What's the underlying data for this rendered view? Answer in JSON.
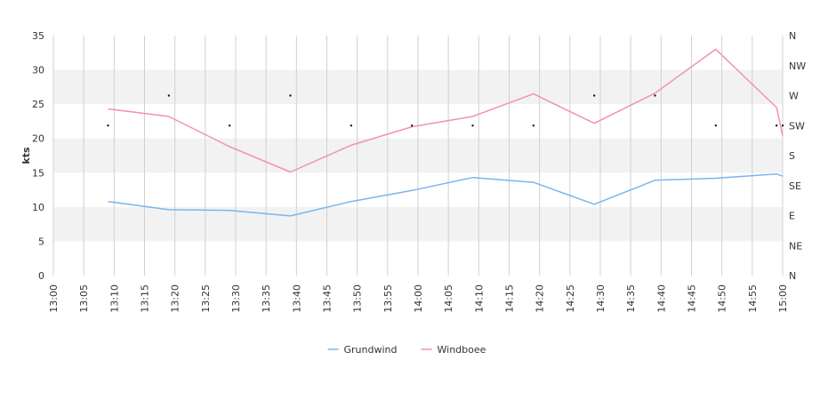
{
  "chart_data": {
    "type": "line",
    "ylabel": "kts",
    "ylim": [
      0,
      35
    ],
    "y_ticks": [
      "0",
      "5",
      "10",
      "15",
      "20",
      "25",
      "30",
      "35"
    ],
    "y2_ticks": [
      "N",
      "NE",
      "E",
      "SE",
      "S",
      "SW",
      "W",
      "NW",
      "N"
    ],
    "x_ticks": [
      "13:00",
      "13:05",
      "13:10",
      "13:15",
      "13:20",
      "13:25",
      "13:30",
      "13:35",
      "13:40",
      "13:45",
      "13:50",
      "13:55",
      "14:00",
      "14:05",
      "14:10",
      "14:15",
      "14:20",
      "14:25",
      "14:30",
      "14:35",
      "14:40",
      "14:45",
      "14:50",
      "14:55",
      "15:00"
    ],
    "grid": true,
    "legend_position": "bottom",
    "series": [
      {
        "name": "Grundwind",
        "color": "#7cb5ec",
        "points": [
          [
            "13:09",
            10.8
          ],
          [
            "13:19",
            9.6
          ],
          [
            "13:29",
            9.5
          ],
          [
            "13:39",
            8.7
          ],
          [
            "13:49",
            10.8
          ],
          [
            "13:59",
            12.4
          ],
          [
            "14:09",
            14.3
          ],
          [
            "14:19",
            13.6
          ],
          [
            "14:29",
            10.4
          ],
          [
            "14:39",
            13.9
          ],
          [
            "14:49",
            14.2
          ],
          [
            "14:59",
            14.8
          ],
          [
            "15:00",
            14.5
          ]
        ]
      },
      {
        "name": "Windboee",
        "color": "#f28fc0",
        "points": [
          [
            "13:09",
            24.3
          ],
          [
            "13:19",
            23.2
          ],
          [
            "13:29",
            18.8
          ],
          [
            "13:39",
            15.1
          ],
          [
            "13:49",
            19.0
          ],
          [
            "13:59",
            21.7
          ],
          [
            "14:09",
            23.2
          ],
          [
            "14:19",
            26.5
          ],
          [
            "14:29",
            22.2
          ],
          [
            "14:39",
            26.6
          ],
          [
            "14:49",
            33.0
          ],
          [
            "14:59",
            24.5
          ],
          [
            "15:00",
            20.4
          ]
        ]
      }
    ],
    "direction_points": [
      [
        "13:09",
        "SW"
      ],
      [
        "13:19",
        "W"
      ],
      [
        "13:29",
        "SW"
      ],
      [
        "13:39",
        "W"
      ],
      [
        "13:49",
        "SW"
      ],
      [
        "13:59",
        "SW"
      ],
      [
        "14:09",
        "SW"
      ],
      [
        "14:19",
        "SW"
      ],
      [
        "14:29",
        "W"
      ],
      [
        "14:39",
        "W"
      ],
      [
        "14:49",
        "SW"
      ],
      [
        "14:59",
        "SW"
      ],
      [
        "15:00",
        "SW"
      ]
    ],
    "colors": {
      "band": "#f2f2f2",
      "grid": "#d0d0d0",
      "text": "#333333",
      "direction_marker": "#000000"
    }
  }
}
